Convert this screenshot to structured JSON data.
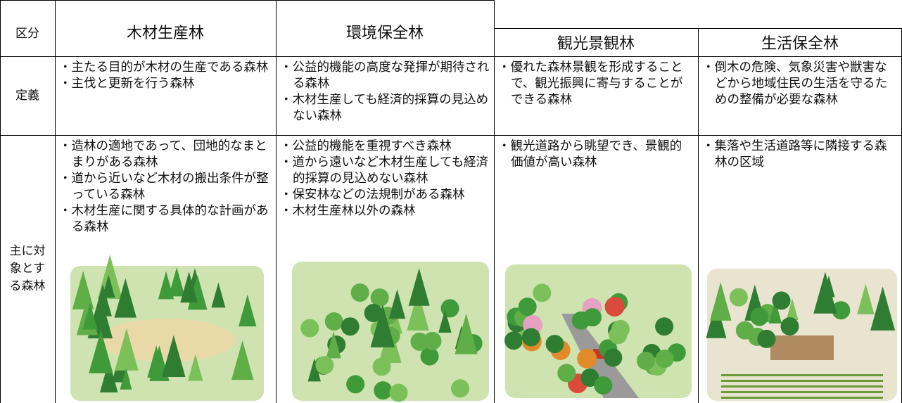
{
  "table": {
    "header": [
      "区分",
      "木材生産林",
      "環境保全林",
      "観光景観林",
      "生活保全林"
    ],
    "rows": [
      {
        "label": "定義",
        "cells": [
          [
            "・主たる目的が木材の生産である森林",
            "・主伐と更新を行う森林"
          ],
          [
            "・公益的機能の高度な発揮が期待される森林",
            "・木材生産しても経済的採算の見込めない森林"
          ],
          [
            "・優れた森林景観を形成することで、観光振興に寄与することができる森林"
          ],
          [
            "・倒木の危険、気象災害や獣害などから地域住民の生活を守るための整備が必要な森林"
          ]
        ]
      },
      {
        "label": "主に対象とする森林",
        "cells": [
          [
            "・造林の適地であって、団地的なまとまりがある森林",
            "・道から近いなど木材の搬出条件が整っている森林",
            "・木材生産に関する具体的な計画がある森林"
          ],
          [
            "・公益的機能を重視すべき森林",
            "・道から遠いなど木材生産しても経済的採算の見込めない森林",
            "・保安林などの法規制がある森林",
            "・木材生産林以外の森林"
          ],
          [
            "・観光道路から眺望でき、景観的価値が高い森林"
          ],
          [
            "・集落や生活道路等に隣接する森林の区域"
          ]
        ]
      }
    ]
  }
}
